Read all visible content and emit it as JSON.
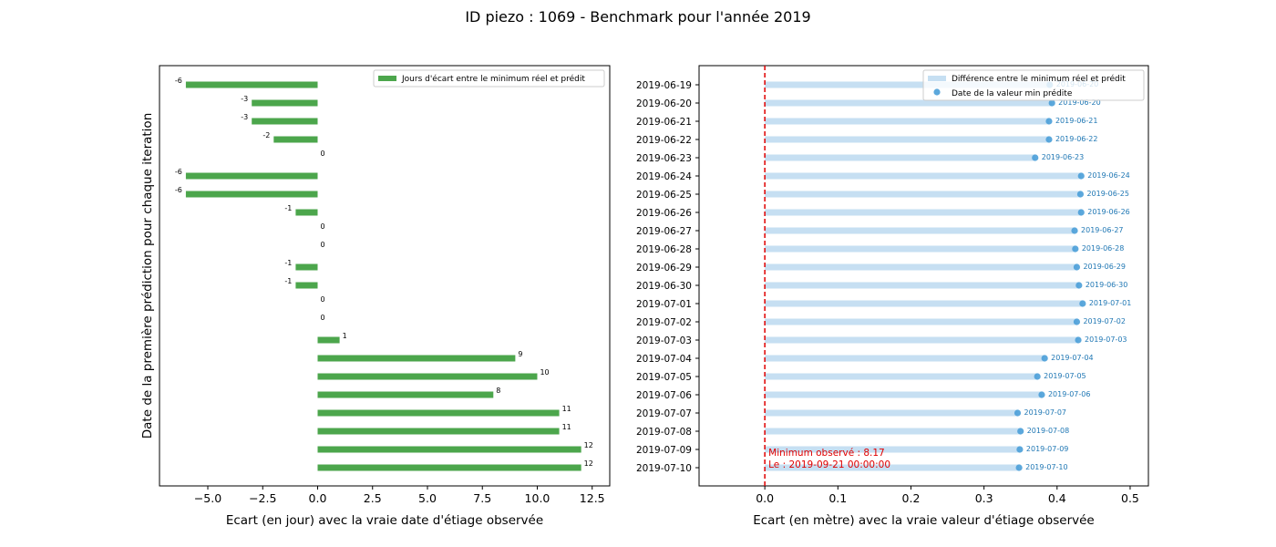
{
  "figure": {
    "title": "ID piezo : 1069 - Benchmark pour l'année 2019"
  },
  "chart_data": [
    {
      "type": "bar",
      "orientation": "horizontal",
      "title": "",
      "xlabel": "Ecart (en jour) avec la vraie date d'étiage observée",
      "ylabel": "Date de la première prédiction pour chaque iteration",
      "xlim": [
        -7.2,
        13.3
      ],
      "xticks": [
        -5.0,
        -2.5,
        0.0,
        2.5,
        5.0,
        7.5,
        10.0,
        12.5
      ],
      "xtick_labels": [
        "−5.0",
        "−2.5",
        "0.0",
        "2.5",
        "5.0",
        "7.5",
        "10.0",
        "12.5"
      ],
      "grid": false,
      "legend_position": "upper right",
      "color": "#4ca64c",
      "series": [
        {
          "name": "Jours d'écart entre le minimum réel et prédit",
          "values": [
            -6,
            -3,
            -3,
            -2,
            0,
            -6,
            -6,
            -1,
            0,
            0,
            -1,
            -1,
            0,
            0,
            1,
            9,
            10,
            8,
            11,
            11,
            12,
            12
          ]
        }
      ]
    },
    {
      "type": "bar",
      "orientation": "horizontal",
      "title": "",
      "xlabel": "Ecart (en mètre) avec la vraie valeur d'étiage observée",
      "ylabel": "",
      "xlim": [
        -0.09,
        0.525
      ],
      "xticks": [
        0.0,
        0.1,
        0.2,
        0.3,
        0.4,
        0.5
      ],
      "xtick_labels": [
        "0.0",
        "0.1",
        "0.2",
        "0.3",
        "0.4",
        "0.5"
      ],
      "grid": false,
      "legend_position": "upper right",
      "categories": [
        "2019-06-19",
        "2019-06-20",
        "2019-06-21",
        "2019-06-22",
        "2019-06-23",
        "2019-06-24",
        "2019-06-25",
        "2019-06-26",
        "2019-06-27",
        "2019-06-28",
        "2019-06-29",
        "2019-06-30",
        "2019-07-01",
        "2019-07-02",
        "2019-07-03",
        "2019-07-04",
        "2019-07-05",
        "2019-07-06",
        "2019-07-07",
        "2019-07-08",
        "2019-07-09",
        "2019-07-10"
      ],
      "series": [
        {
          "name": "Différence entre le minimum réel et prédit",
          "color": "#c6dff2",
          "values": [
            0.39,
            0.393,
            0.389,
            0.389,
            0.37,
            0.433,
            0.432,
            0.433,
            0.424,
            0.425,
            0.427,
            0.43,
            0.435,
            0.427,
            0.429,
            0.383,
            0.373,
            0.379,
            0.346,
            0.35,
            0.349,
            0.348
          ]
        },
        {
          "name": "Date de la valeur min prédite",
          "color": "#4a9fd8",
          "values": [
            0.39,
            0.393,
            0.389,
            0.389,
            0.37,
            0.433,
            0.432,
            0.433,
            0.424,
            0.425,
            0.427,
            0.43,
            0.435,
            0.427,
            0.429,
            0.383,
            0.373,
            0.379,
            0.346,
            0.35,
            0.349,
            0.348
          ],
          "point_labels": [
            "2019-06-20",
            "2019-06-20",
            "2019-06-21",
            "2019-06-22",
            "2019-06-23",
            "2019-06-24",
            "2019-06-25",
            "2019-06-26",
            "2019-06-27",
            "2019-06-28",
            "2019-06-29",
            "2019-06-30",
            "2019-07-01",
            "2019-07-02",
            "2019-07-03",
            "2019-07-04",
            "2019-07-05",
            "2019-07-06",
            "2019-07-07",
            "2019-07-08",
            "2019-07-09",
            "2019-07-10"
          ]
        }
      ],
      "reference_line": {
        "x": 0.0,
        "color": "#e00000",
        "style": "dashed"
      },
      "annotation": {
        "lines": [
          "Minimum observé : 8.17",
          "Le : 2019-09-21 00:00:00"
        ],
        "color": "#e00000"
      }
    }
  ]
}
